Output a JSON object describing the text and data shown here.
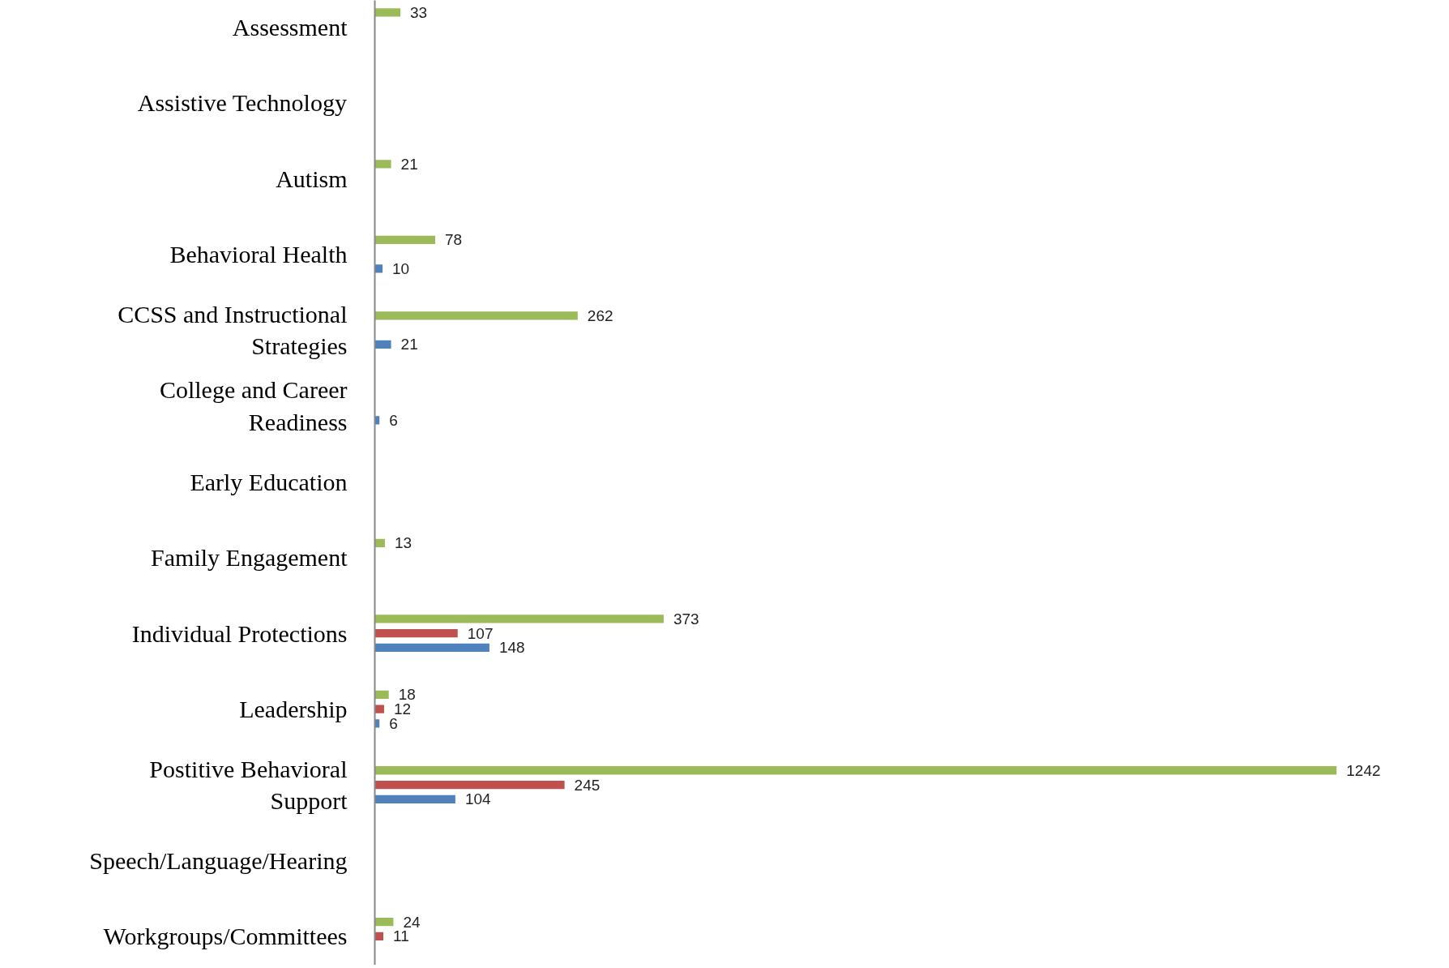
{
  "chart_data": {
    "type": "bar",
    "orientation": "horizontal",
    "categories": [
      "Assessment",
      "Assistive Technology",
      "Autism",
      "Behavioral Health",
      "CCSS and Instructional Strategies",
      "College and Career Readiness",
      "Early Education",
      "Family Engagement",
      "Individual Protections",
      "Leadership",
      "Postitive Behavioral Support",
      "Speech/Language/Hearing",
      "Workgroups/Committees"
    ],
    "series": [
      {
        "color": "#9bbb59",
        "values": [
          33,
          null,
          21,
          78,
          262,
          null,
          null,
          13,
          373,
          18,
          1242,
          null,
          24
        ]
      },
      {
        "color": "#c0504d",
        "values": [
          null,
          null,
          null,
          null,
          null,
          null,
          null,
          null,
          107,
          12,
          245,
          null,
          11
        ]
      },
      {
        "color": "#4f81bd",
        "values": [
          null,
          null,
          null,
          10,
          21,
          6,
          null,
          null,
          148,
          6,
          104,
          null,
          null
        ]
      }
    ],
    "data_labels": true,
    "tick_labels": "y",
    "grid": false
  }
}
